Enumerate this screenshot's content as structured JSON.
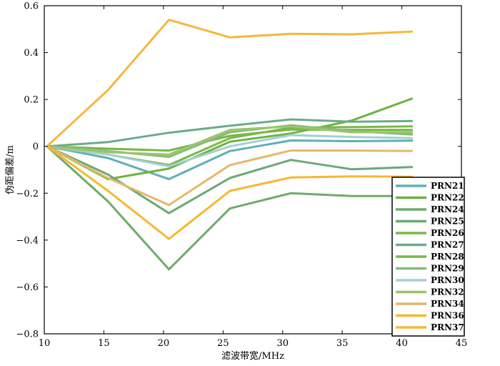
{
  "chart_data": {
    "type": "line",
    "xlabel": "滤波带宽/MHz",
    "ylabel": "伪距偏差/m",
    "xlim": [
      10,
      45
    ],
    "ylim": [
      -0.8,
      0.6
    ],
    "xticks": [
      10,
      15,
      20,
      25,
      30,
      35,
      40,
      45
    ],
    "yticks": [
      -0.8,
      -0.6,
      -0.4,
      -0.2,
      0,
      0.2,
      0.4,
      0.6
    ],
    "xtick_labels": [
      "10",
      "15",
      "20",
      "25",
      "30",
      "35",
      "40",
      "45"
    ],
    "ytick_labels": [
      "−0.8",
      "−0.6",
      "−0.4",
      "−0.2",
      "0",
      "0.2",
      "0.4",
      "0.6"
    ],
    "x": [
      10.23,
      15.345,
      20.46,
      25.575,
      30.69,
      35.805,
      40.92
    ],
    "legend_position": "right",
    "grid": false,
    "series": [
      {
        "name": "PRN21",
        "color": "#5fb0b5",
        "values": [
          0,
          -0.05,
          -0.14,
          -0.02,
          0.025,
          0.022,
          0.024
        ]
      },
      {
        "name": "PRN22",
        "color": "#6cb33f",
        "values": [
          0,
          -0.14,
          -0.095,
          0.02,
          0.055,
          0.11,
          0.205
        ]
      },
      {
        "name": "PRN24",
        "color": "#6dac6a",
        "values": [
          0,
          -0.235,
          -0.525,
          -0.265,
          -0.2,
          -0.212,
          -0.212
        ]
      },
      {
        "name": "PRN25",
        "color": "#6aaa74",
        "values": [
          0,
          -0.12,
          -0.285,
          -0.135,
          -0.058,
          -0.098,
          -0.088
        ]
      },
      {
        "name": "PRN26",
        "color": "#78b646",
        "values": [
          0,
          -0.01,
          -0.018,
          0.045,
          0.072,
          0.07,
          0.07
        ]
      },
      {
        "name": "PRN27",
        "color": "#6aac8a",
        "values": [
          0,
          0.018,
          0.058,
          0.088,
          0.115,
          0.105,
          0.108
        ]
      },
      {
        "name": "PRN28",
        "color": "#7cb84a",
        "values": [
          0,
          -0.035,
          -0.08,
          0.035,
          0.08,
          0.082,
          0.085
        ]
      },
      {
        "name": "PRN29",
        "color": "#86bb7c",
        "values": [
          0,
          -0.02,
          -0.045,
          0.06,
          0.09,
          0.065,
          0.05
        ]
      },
      {
        "name": "PRN30",
        "color": "#a6cfd6",
        "values": [
          0,
          -0.035,
          -0.085,
          0.0,
          0.048,
          0.04,
          0.035
        ]
      },
      {
        "name": "PRN32",
        "color": "#9ec46a",
        "values": [
          0,
          -0.025,
          -0.035,
          0.07,
          0.085,
          0.06,
          0.06
        ]
      },
      {
        "name": "PRN34",
        "color": "#e6b86a",
        "values": [
          0,
          -0.135,
          -0.25,
          -0.08,
          -0.018,
          -0.018,
          -0.02
        ]
      },
      {
        "name": "PRN36",
        "color": "#f5b82e",
        "values": [
          0,
          -0.19,
          -0.395,
          -0.19,
          -0.133,
          -0.128,
          -0.13
        ]
      },
      {
        "name": "PRN37",
        "color": "#f5b83a",
        "values": [
          0,
          0.24,
          0.54,
          0.465,
          0.48,
          0.478,
          0.49
        ]
      }
    ]
  }
}
